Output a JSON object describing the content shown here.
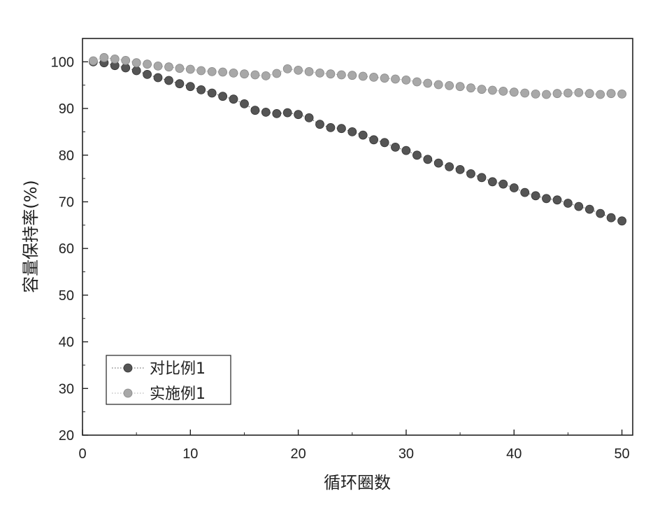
{
  "chart_data": {
    "type": "scatter",
    "title": "",
    "xlabel": "循环圈数",
    "ylabel": "容量保持率(%)",
    "xlim": [
      0,
      51
    ],
    "ylim": [
      20,
      105
    ],
    "xticks": [
      0,
      10,
      20,
      30,
      40,
      50
    ],
    "yticks": [
      20,
      30,
      40,
      50,
      60,
      70,
      80,
      90,
      100
    ],
    "grid": false,
    "legend_position": "bottom-left",
    "series": [
      {
        "name": "对比例1",
        "color": "#555555",
        "marker": "circle",
        "line_style": "dotted",
        "x": [
          1,
          2,
          3,
          4,
          5,
          6,
          7,
          8,
          9,
          10,
          11,
          12,
          13,
          14,
          15,
          16,
          17,
          18,
          19,
          20,
          21,
          22,
          23,
          24,
          25,
          26,
          27,
          28,
          29,
          30,
          31,
          32,
          33,
          34,
          35,
          36,
          37,
          38,
          39,
          40,
          41,
          42,
          43,
          44,
          45,
          46,
          47,
          48,
          49,
          50
        ],
        "y": [
          100,
          99.8,
          99.2,
          98.7,
          98.1,
          97.3,
          96.6,
          96.0,
          95.3,
          94.7,
          94.0,
          93.3,
          92.6,
          92.0,
          91.0,
          89.6,
          89.2,
          88.9,
          89.1,
          88.7,
          88.0,
          86.6,
          85.9,
          85.7,
          85.0,
          84.3,
          83.3,
          82.7,
          81.7,
          81.0,
          80.0,
          79.1,
          78.3,
          77.5,
          76.9,
          76.0,
          75.2,
          74.3,
          73.8,
          73.0,
          72.0,
          71.3,
          70.7,
          70.4,
          69.7,
          69.0,
          68.4,
          67.5,
          66.6,
          65.9
        ]
      },
      {
        "name": "实施例1",
        "color": "#a8a8a8",
        "marker": "circle",
        "line_style": "dotted",
        "x": [
          1,
          2,
          3,
          4,
          5,
          6,
          7,
          8,
          9,
          10,
          11,
          12,
          13,
          14,
          15,
          16,
          17,
          18,
          19,
          20,
          21,
          22,
          23,
          24,
          25,
          26,
          27,
          28,
          29,
          30,
          31,
          32,
          33,
          34,
          35,
          36,
          37,
          38,
          39,
          40,
          41,
          42,
          43,
          44,
          45,
          46,
          47,
          48,
          49,
          50
        ],
        "y": [
          100.2,
          100.9,
          100.6,
          100.3,
          99.8,
          99.5,
          99.1,
          98.9,
          98.6,
          98.4,
          98.1,
          97.9,
          97.8,
          97.6,
          97.4,
          97.2,
          97.0,
          97.5,
          98.5,
          98.2,
          97.9,
          97.6,
          97.4,
          97.2,
          97.1,
          96.9,
          96.7,
          96.5,
          96.3,
          96.1,
          95.7,
          95.4,
          95.1,
          94.9,
          94.7,
          94.4,
          94.1,
          93.9,
          93.7,
          93.5,
          93.3,
          93.1,
          93.0,
          93.2,
          93.3,
          93.4,
          93.2,
          93.0,
          93.2,
          93.1
        ]
      }
    ]
  }
}
